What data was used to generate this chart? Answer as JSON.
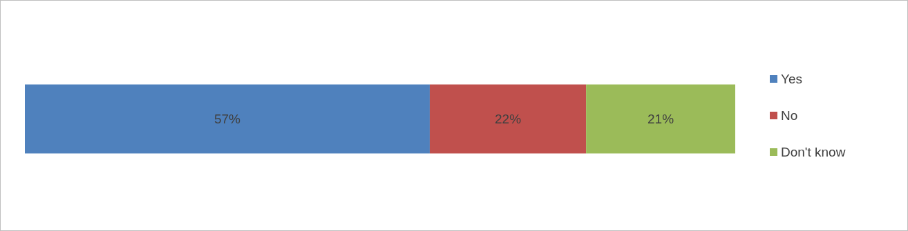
{
  "chart_data": {
    "type": "bar",
    "orientation": "horizontal",
    "stacked": true,
    "categories": [
      null
    ],
    "legend": "right",
    "series": [
      {
        "name": "Yes",
        "color": "#4f81bd",
        "values": [
          57
        ],
        "value_labels": [
          "57%"
        ]
      },
      {
        "name": "No",
        "color": "#c0504d",
        "values": [
          22
        ],
        "value_labels": [
          "22%"
        ]
      },
      {
        "name": "Don't know",
        "color": "#9bbb59",
        "values": [
          21
        ],
        "value_labels": [
          "21%"
        ]
      }
    ]
  }
}
